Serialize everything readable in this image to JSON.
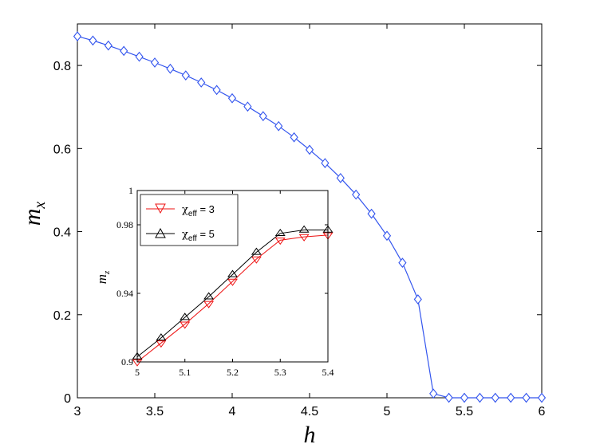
{
  "chart_data": [
    {
      "type": "line",
      "title": "",
      "xlabel": "h",
      "ylabel": "m",
      "ylabel_subscript": "x",
      "xlim": [
        3,
        6
      ],
      "ylim": [
        0,
        0.9
      ],
      "xticks": [
        "3",
        "3.5",
        "4",
        "4.5",
        "5",
        "5.5",
        "6"
      ],
      "yticks": [
        "0",
        "0.2",
        "0.4",
        "0.6",
        "0.8"
      ],
      "grid": false,
      "colors": {
        "main": "#3355ee"
      },
      "series": [
        {
          "marker": "diamond",
          "x": [
            3.0,
            3.1,
            3.2,
            3.3,
            3.4,
            3.5,
            3.6,
            3.7,
            3.8,
            3.9,
            4.0,
            4.1,
            4.2,
            4.3,
            4.4,
            4.5,
            4.6,
            4.7,
            4.8,
            4.9,
            5.0,
            5.1,
            5.2,
            5.3,
            5.4,
            5.5,
            5.6,
            5.7,
            5.8,
            5.9,
            6.0
          ],
          "y": [
            0.87,
            0.86,
            0.848,
            0.835,
            0.821,
            0.807,
            0.792,
            0.776,
            0.759,
            0.741,
            0.721,
            0.701,
            0.678,
            0.654,
            0.627,
            0.597,
            0.565,
            0.529,
            0.489,
            0.443,
            0.39,
            0.325,
            0.237,
            0.01,
            0.0,
            0.0,
            0.0,
            0.0,
            0.0,
            0.0,
            0.0
          ]
        }
      ]
    },
    {
      "type": "line",
      "title": "",
      "xlabel": "",
      "ylabel": "m",
      "ylabel_subscript": "z",
      "xlim": [
        5,
        5.4
      ],
      "ylim": [
        0.9,
        1.0
      ],
      "xticks": [
        "5",
        "5.1",
        "5.2",
        "5.3",
        "5.4"
      ],
      "yticks": [
        "0.9",
        "0.94",
        "0.98",
        "1"
      ],
      "grid": false,
      "legend_position": "top-left",
      "series": [
        {
          "name": "χ",
          "name_subscript": "eff",
          "name_suffix": " = 3",
          "color": "#ee1111",
          "marker": "triangle-down",
          "x": [
            5.0,
            5.05,
            5.1,
            5.15,
            5.2,
            5.25,
            5.3,
            5.35,
            5.4
          ],
          "y": [
            0.9,
            0.911,
            0.922,
            0.934,
            0.947,
            0.96,
            0.971,
            0.973,
            0.974
          ]
        },
        {
          "name": "χ",
          "name_subscript": "eff",
          "name_suffix": " = 5",
          "color": "#000000",
          "marker": "triangle-up",
          "x": [
            5.0,
            5.05,
            5.1,
            5.15,
            5.2,
            5.25,
            5.3,
            5.35,
            5.4
          ],
          "y": [
            0.903,
            0.914,
            0.926,
            0.938,
            0.951,
            0.964,
            0.975,
            0.977,
            0.977
          ]
        }
      ]
    }
  ]
}
